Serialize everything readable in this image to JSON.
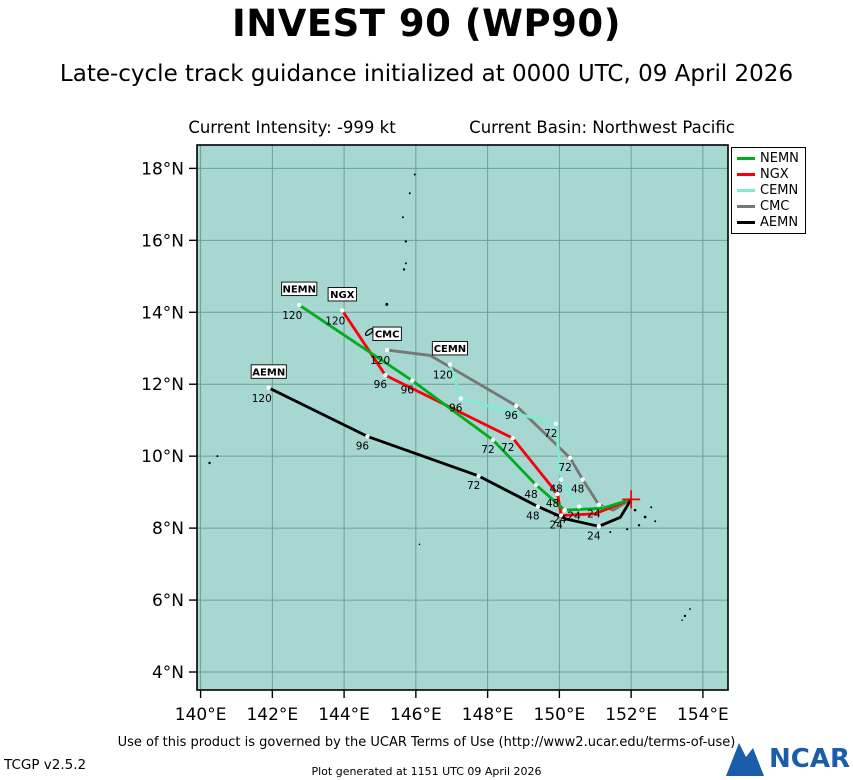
{
  "title": "INVEST 90 (WP90)",
  "subtitle": "Late-cycle track guidance initialized at 0000 UTC, 09 April 2026",
  "header": {
    "intensity": "Current Intensity: -999 kt",
    "basin": "Current Basin: Northwest Pacific"
  },
  "footer": {
    "terms": "Use of this product is governed by the UCAR Terms of Use (http://www2.ucar.edu/terms-of-use)",
    "version": "TCGP v2.5.2",
    "generated": "Plot generated at 1151 UTC   09 April 2026",
    "logo_text": "NCAR",
    "logo_color": "#1a5dab"
  },
  "chart_data": {
    "type": "line",
    "title": "INVEST 90 (WP90) late-cycle track guidance",
    "map": {
      "bg_color": "#a6d8d1",
      "grid_color": "#6f9e98",
      "lon_range": [
        139.9,
        154.7
      ],
      "lat_range": [
        3.5,
        18.65
      ],
      "x_ticks": [
        {
          "label": "140°E",
          "value": 140
        },
        {
          "label": "142°E",
          "value": 142
        },
        {
          "label": "144°E",
          "value": 144
        },
        {
          "label": "146°E",
          "value": 146
        },
        {
          "label": "148°E",
          "value": 148
        },
        {
          "label": "150°E",
          "value": 150
        },
        {
          "label": "152°E",
          "value": 152
        },
        {
          "label": "154°E",
          "value": 154
        }
      ],
      "y_ticks": [
        {
          "label": "18°N",
          "value": 18
        },
        {
          "label": "16°N",
          "value": 16
        },
        {
          "label": "14°N",
          "value": 14
        },
        {
          "label": "12°N",
          "value": 12
        },
        {
          "label": "10°N",
          "value": 10
        },
        {
          "label": "8°N",
          "value": 8
        },
        {
          "label": "6°N",
          "value": 6
        },
        {
          "label": "4°N",
          "value": 4
        }
      ]
    },
    "start": {
      "lon": 152.0,
      "lat": 8.8,
      "marker_color": "#ff0000"
    },
    "draw_order": [
      3,
      2,
      1,
      0,
      4
    ],
    "series": [
      {
        "name": "NEMN",
        "color": "#00ad1d",
        "points": [
          {
            "lon": 152.0,
            "lat": 8.8,
            "hour": 0
          },
          {
            "lon": 151.2,
            "lat": 8.55
          },
          {
            "lon": 150.15,
            "lat": 8.5,
            "hour": 24
          },
          {
            "lon": 149.35,
            "lat": 9.2,
            "hour": 48
          },
          {
            "lon": 148.15,
            "lat": 10.45,
            "hour": 72
          },
          {
            "lon": 145.9,
            "lat": 12.1,
            "hour": 96
          },
          {
            "lon": 142.75,
            "lat": 14.2,
            "hour": 120
          }
        ]
      },
      {
        "name": "NGX",
        "color": "#fb0007",
        "points": [
          {
            "lon": 152.0,
            "lat": 8.8,
            "hour": 0
          },
          {
            "lon": 151.0,
            "lat": 8.4
          },
          {
            "lon": 150.05,
            "lat": 8.35,
            "hour": 24
          },
          {
            "lon": 149.95,
            "lat": 8.95,
            "hour": 48
          },
          {
            "lon": 148.7,
            "lat": 10.5,
            "hour": 72
          },
          {
            "lon": 145.15,
            "lat": 12.25,
            "hour": 96
          },
          {
            "lon": 143.95,
            "lat": 14.05,
            "hour": 120
          }
        ]
      },
      {
        "name": "CEMN",
        "color": "#82ead0",
        "points": [
          {
            "lon": 152.0,
            "lat": 8.8,
            "hour": 0
          },
          {
            "lon": 150.95,
            "lat": 8.5
          },
          {
            "lon": 150.55,
            "lat": 8.6,
            "hour": 24
          },
          {
            "lon": 150.05,
            "lat": 9.35,
            "hour": 48
          },
          {
            "lon": 149.9,
            "lat": 10.9,
            "hour": 72
          },
          {
            "lon": 147.25,
            "lat": 11.6,
            "hour": 96
          },
          {
            "lon": 146.95,
            "lat": 12.55,
            "hour": 120
          }
        ]
      },
      {
        "name": "CMC",
        "color": "#777777",
        "points": [
          {
            "lon": 152.0,
            "lat": 8.8,
            "hour": 0
          },
          {
            "lon": 151.5,
            "lat": 8.5
          },
          {
            "lon": 151.1,
            "lat": 8.65,
            "hour": 24
          },
          {
            "lon": 150.65,
            "lat": 9.35,
            "hour": 48
          },
          {
            "lon": 150.3,
            "lat": 9.95,
            "hour": 72
          },
          {
            "lon": 148.8,
            "lat": 11.4,
            "hour": 96
          },
          {
            "lon": 146.4,
            "lat": 12.8
          },
          {
            "lon": 145.2,
            "lat": 12.95,
            "hour": 120
          }
        ]
      },
      {
        "name": "AEMN",
        "color": "#000000",
        "points": [
          {
            "lon": 152.0,
            "lat": 8.8,
            "hour": 0
          },
          {
            "lon": 151.7,
            "lat": 8.3
          },
          {
            "lon": 151.1,
            "lat": 8.05,
            "hour": 24
          },
          {
            "lon": 150.2,
            "lat": 8.25
          },
          {
            "lon": 149.4,
            "lat": 8.6,
            "hour": 48
          },
          {
            "lon": 147.75,
            "lat": 9.45,
            "hour": 72
          },
          {
            "lon": 144.65,
            "lat": 10.55,
            "hour": 96
          },
          {
            "lon": 141.9,
            "lat": 11.9,
            "hour": 120
          }
        ]
      }
    ],
    "guam": {
      "lon": 144.7,
      "lat": 13.45
    },
    "islands": [
      [
        140.25,
        9.81,
        1.2
      ],
      [
        140.47,
        10.0,
        1.0
      ],
      [
        145.19,
        14.22,
        1.5
      ],
      [
        145.67,
        15.19,
        1.2
      ],
      [
        145.72,
        15.36,
        1.0
      ],
      [
        145.72,
        15.97,
        1.2
      ],
      [
        145.64,
        16.64,
        1.0
      ],
      [
        145.83,
        17.31,
        1.0
      ],
      [
        145.97,
        17.83,
        1.0
      ],
      [
        152.11,
        8.5,
        1.3
      ],
      [
        152.39,
        8.31,
        1.4
      ],
      [
        152.56,
        8.58,
        1.0
      ],
      [
        152.22,
        8.08,
        1.2
      ],
      [
        151.89,
        7.97,
        1.1
      ],
      [
        151.42,
        7.89,
        1.0
      ],
      [
        151.22,
        8.08,
        1.0
      ],
      [
        152.67,
        8.19,
        1.0
      ],
      [
        153.5,
        5.56,
        1.2
      ],
      [
        153.64,
        5.75,
        0.9
      ],
      [
        153.42,
        5.44,
        0.8
      ],
      [
        146.1,
        7.55,
        0.8
      ]
    ]
  }
}
